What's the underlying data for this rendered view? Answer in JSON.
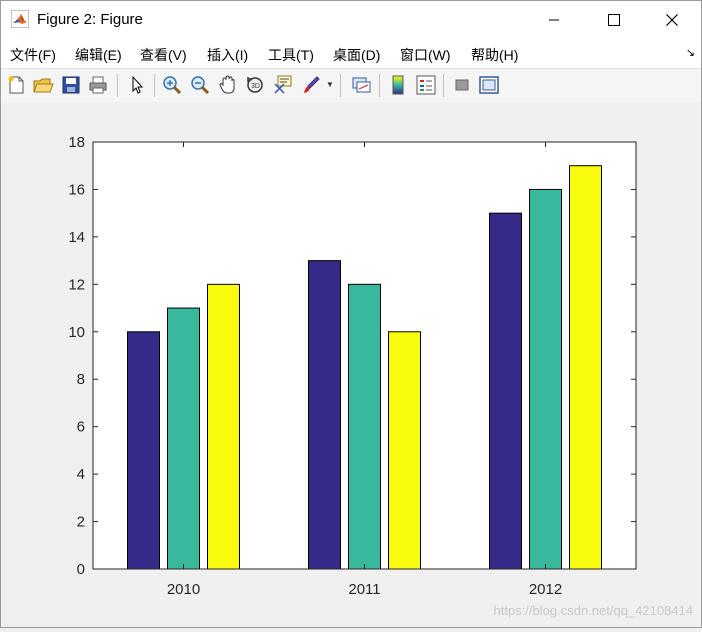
{
  "window": {
    "title": "Figure 2: Figure",
    "controls": {
      "minimize_icon": "minimize-icon",
      "maximize_icon": "maximize-icon",
      "close_icon": "close-icon"
    }
  },
  "menu": {
    "items": [
      {
        "label": "文件(F)"
      },
      {
        "label": "编辑(E)"
      },
      {
        "label": "查看(V)"
      },
      {
        "label": "插入(I)"
      },
      {
        "label": "工具(T)"
      },
      {
        "label": "桌面(D)"
      },
      {
        "label": "窗口(W)"
      },
      {
        "label": "帮助(H)"
      }
    ],
    "overflow_icon": "dock-arrow-icon"
  },
  "toolbar": {
    "buttons": [
      "new-figure-icon",
      "open-file-icon",
      "save-icon",
      "print-icon",
      "select-arrow-icon",
      "zoom-in-icon",
      "zoom-out-icon",
      "pan-hand-icon",
      "rotate-3d-icon",
      "data-cursor-icon",
      "brush-icon",
      "link-plot-icon",
      "colorbar-icon",
      "legend-icon",
      "hide-plot-tools-icon",
      "show-plot-tools-icon"
    ]
  },
  "watermark": "https://blog.csdn.net/qq_42108414",
  "chart_data": {
    "type": "bar",
    "categories": [
      "2010",
      "2011",
      "2012"
    ],
    "series": [
      {
        "values": [
          10,
          13,
          15
        ],
        "color": "#352a87"
      },
      {
        "values": [
          11,
          12,
          16
        ],
        "color": "#38b99e"
      },
      {
        "values": [
          12,
          10,
          17
        ],
        "color": "#f9fb0e"
      }
    ],
    "ylim": [
      0,
      18
    ],
    "yticks": [
      0,
      2,
      4,
      6,
      8,
      10,
      12,
      14,
      16,
      18
    ],
    "xlabel": "",
    "ylabel": "",
    "title": "",
    "grid": false
  }
}
